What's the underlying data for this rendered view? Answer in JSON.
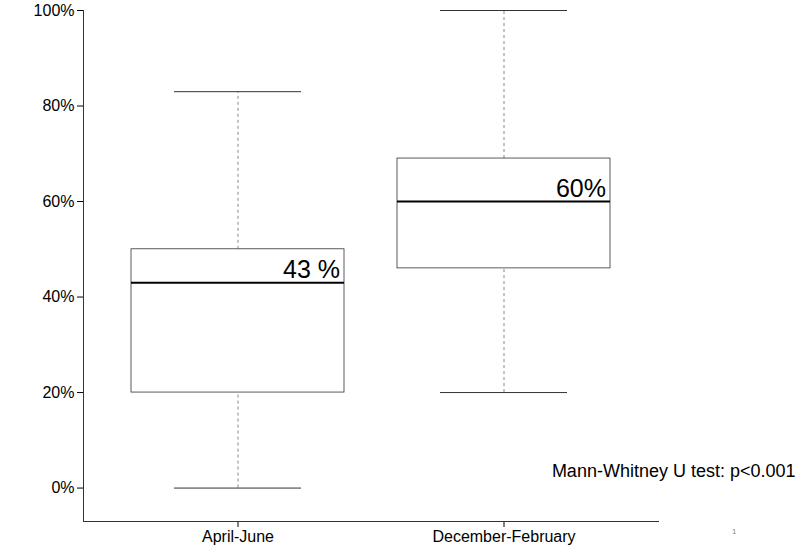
{
  "chart_data": {
    "type": "box",
    "categories": [
      "April-June",
      "December-February"
    ],
    "whisker_low": [
      0,
      20
    ],
    "q1": [
      20,
      46
    ],
    "values": [
      43,
      60
    ],
    "q3": [
      50,
      69
    ],
    "whisker_high": [
      83,
      100
    ],
    "data_labels": true,
    "value_labels": [
      "43 %",
      "60%"
    ],
    "ylim": [
      -7,
      100
    ],
    "yticks": [
      {
        "value": 0,
        "label": "0%"
      },
      {
        "value": 20,
        "label": "20%"
      },
      {
        "value": 40,
        "label": "40%"
      },
      {
        "value": 60,
        "label": "60%"
      },
      {
        "value": 80,
        "label": "80%"
      },
      {
        "value": 100,
        "label": "100%"
      }
    ],
    "annotation": "Mann-Whitney U test: p<0.001",
    "page_number": "1",
    "color": "#ffffff"
  }
}
